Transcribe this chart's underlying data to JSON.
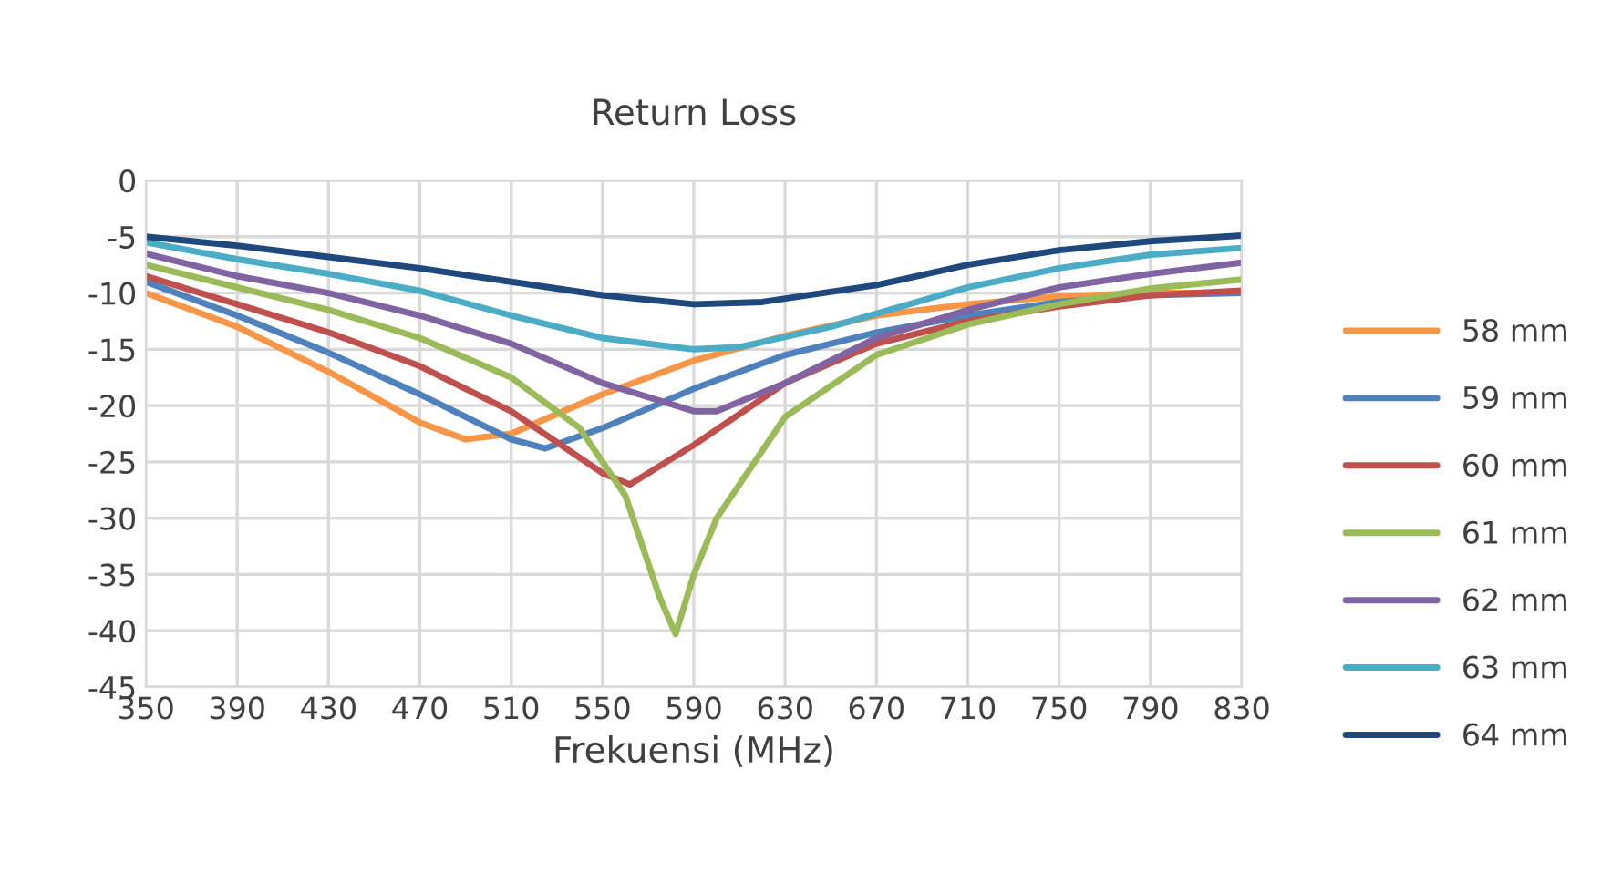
{
  "chart_data": {
    "type": "line",
    "title": "Return Loss",
    "xlabel": "Frekuensi (MHz)",
    "xlim": [
      350,
      830
    ],
    "xticks": [
      350,
      390,
      430,
      470,
      510,
      550,
      590,
      630,
      670,
      710,
      750,
      790,
      830
    ],
    "ylim": [
      -45,
      0
    ],
    "yticks": [
      -45,
      -40,
      -35,
      -30,
      -25,
      -20,
      -15,
      -10,
      -5,
      0
    ],
    "grid": true,
    "legend": "right",
    "marker": "none",
    "line_style": "solid",
    "series": [
      {
        "name": "58 mm",
        "color": "#f79646",
        "x": [
          350,
          390,
          430,
          470,
          490,
          510,
          550,
          590,
          630,
          670,
          710,
          750,
          790,
          830
        ],
        "values": [
          -10,
          -13,
          -17,
          -21.5,
          -23,
          -22.5,
          -19,
          -16,
          -13.8,
          -12,
          -11,
          -10.3,
          -10,
          -10
        ]
      },
      {
        "name": "59 mm",
        "color": "#4f81bd",
        "x": [
          350,
          390,
          430,
          470,
          510,
          525,
          550,
          590,
          630,
          670,
          710,
          750,
          790,
          830
        ],
        "values": [
          -9,
          -12,
          -15.3,
          -19,
          -23,
          -23.8,
          -22,
          -18.5,
          -15.5,
          -13.5,
          -12,
          -10.8,
          -10.2,
          -10
        ]
      },
      {
        "name": "60 mm",
        "color": "#c0504d",
        "x": [
          350,
          390,
          430,
          470,
          510,
          550,
          562,
          590,
          630,
          670,
          710,
          750,
          790,
          830
        ],
        "values": [
          -8.5,
          -11,
          -13.5,
          -16.5,
          -20.5,
          -26,
          -27,
          -23.5,
          -18,
          -14.5,
          -12.5,
          -11.2,
          -10.2,
          -9.8
        ]
      },
      {
        "name": "61 mm",
        "color": "#9bbb59",
        "x": [
          350,
          390,
          430,
          470,
          510,
          540,
          560,
          575,
          582,
          590,
          600,
          630,
          670,
          710,
          750,
          790,
          830
        ],
        "values": [
          -7.5,
          -9.5,
          -11.5,
          -14,
          -17.5,
          -22,
          -28,
          -37,
          -40.3,
          -35,
          -30,
          -21,
          -15.5,
          -12.8,
          -11,
          -9.6,
          -8.8
        ]
      },
      {
        "name": "62 mm",
        "color": "#8064a2",
        "x": [
          350,
          390,
          430,
          470,
          510,
          550,
          590,
          600,
          630,
          670,
          710,
          750,
          790,
          830
        ],
        "values": [
          -6.5,
          -8.5,
          -10,
          -12,
          -14.5,
          -18,
          -20.5,
          -20.5,
          -18,
          -14,
          -11.5,
          -9.5,
          -8.3,
          -7.3
        ]
      },
      {
        "name": "63 mm",
        "color": "#4bacc6",
        "x": [
          350,
          390,
          430,
          470,
          510,
          550,
          590,
          610,
          650,
          710,
          750,
          790,
          830
        ],
        "values": [
          -5.5,
          -7,
          -8.3,
          -9.8,
          -12,
          -14,
          -15,
          -14.8,
          -13,
          -9.5,
          -7.8,
          -6.6,
          -6
        ]
      },
      {
        "name": "64 mm",
        "color": "#1f497d",
        "x": [
          350,
          390,
          430,
          470,
          510,
          550,
          590,
          620,
          670,
          710,
          750,
          790,
          830
        ],
        "values": [
          -5,
          -5.8,
          -6.8,
          -7.8,
          -9,
          -10.2,
          -11,
          -10.8,
          -9.3,
          -7.5,
          -6.2,
          -5.4,
          -4.9
        ]
      }
    ]
  }
}
